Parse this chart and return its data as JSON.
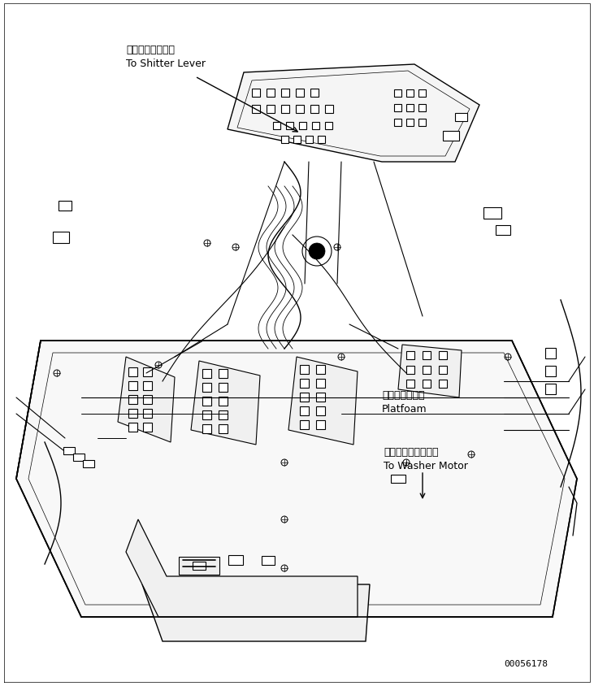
{
  "figure_width": 7.31,
  "figure_height": 8.45,
  "dpi": 100,
  "bg_color": "#ffffff",
  "line_color": "#000000",
  "line_width": 0.8,
  "annotation_shitter_lever_ja": "シフターレバーへ",
  "annotation_shitter_lever_en": "To Shitter Lever",
  "annotation_platform_ja": "プラットホーム",
  "annotation_platform_en": "Platfoam",
  "annotation_washer_ja": "ウォッシャモータへ",
  "annotation_washer_en": "To Washer Motor",
  "part_number": "00056178",
  "font_size_annotations": 9,
  "font_size_part_number": 8
}
